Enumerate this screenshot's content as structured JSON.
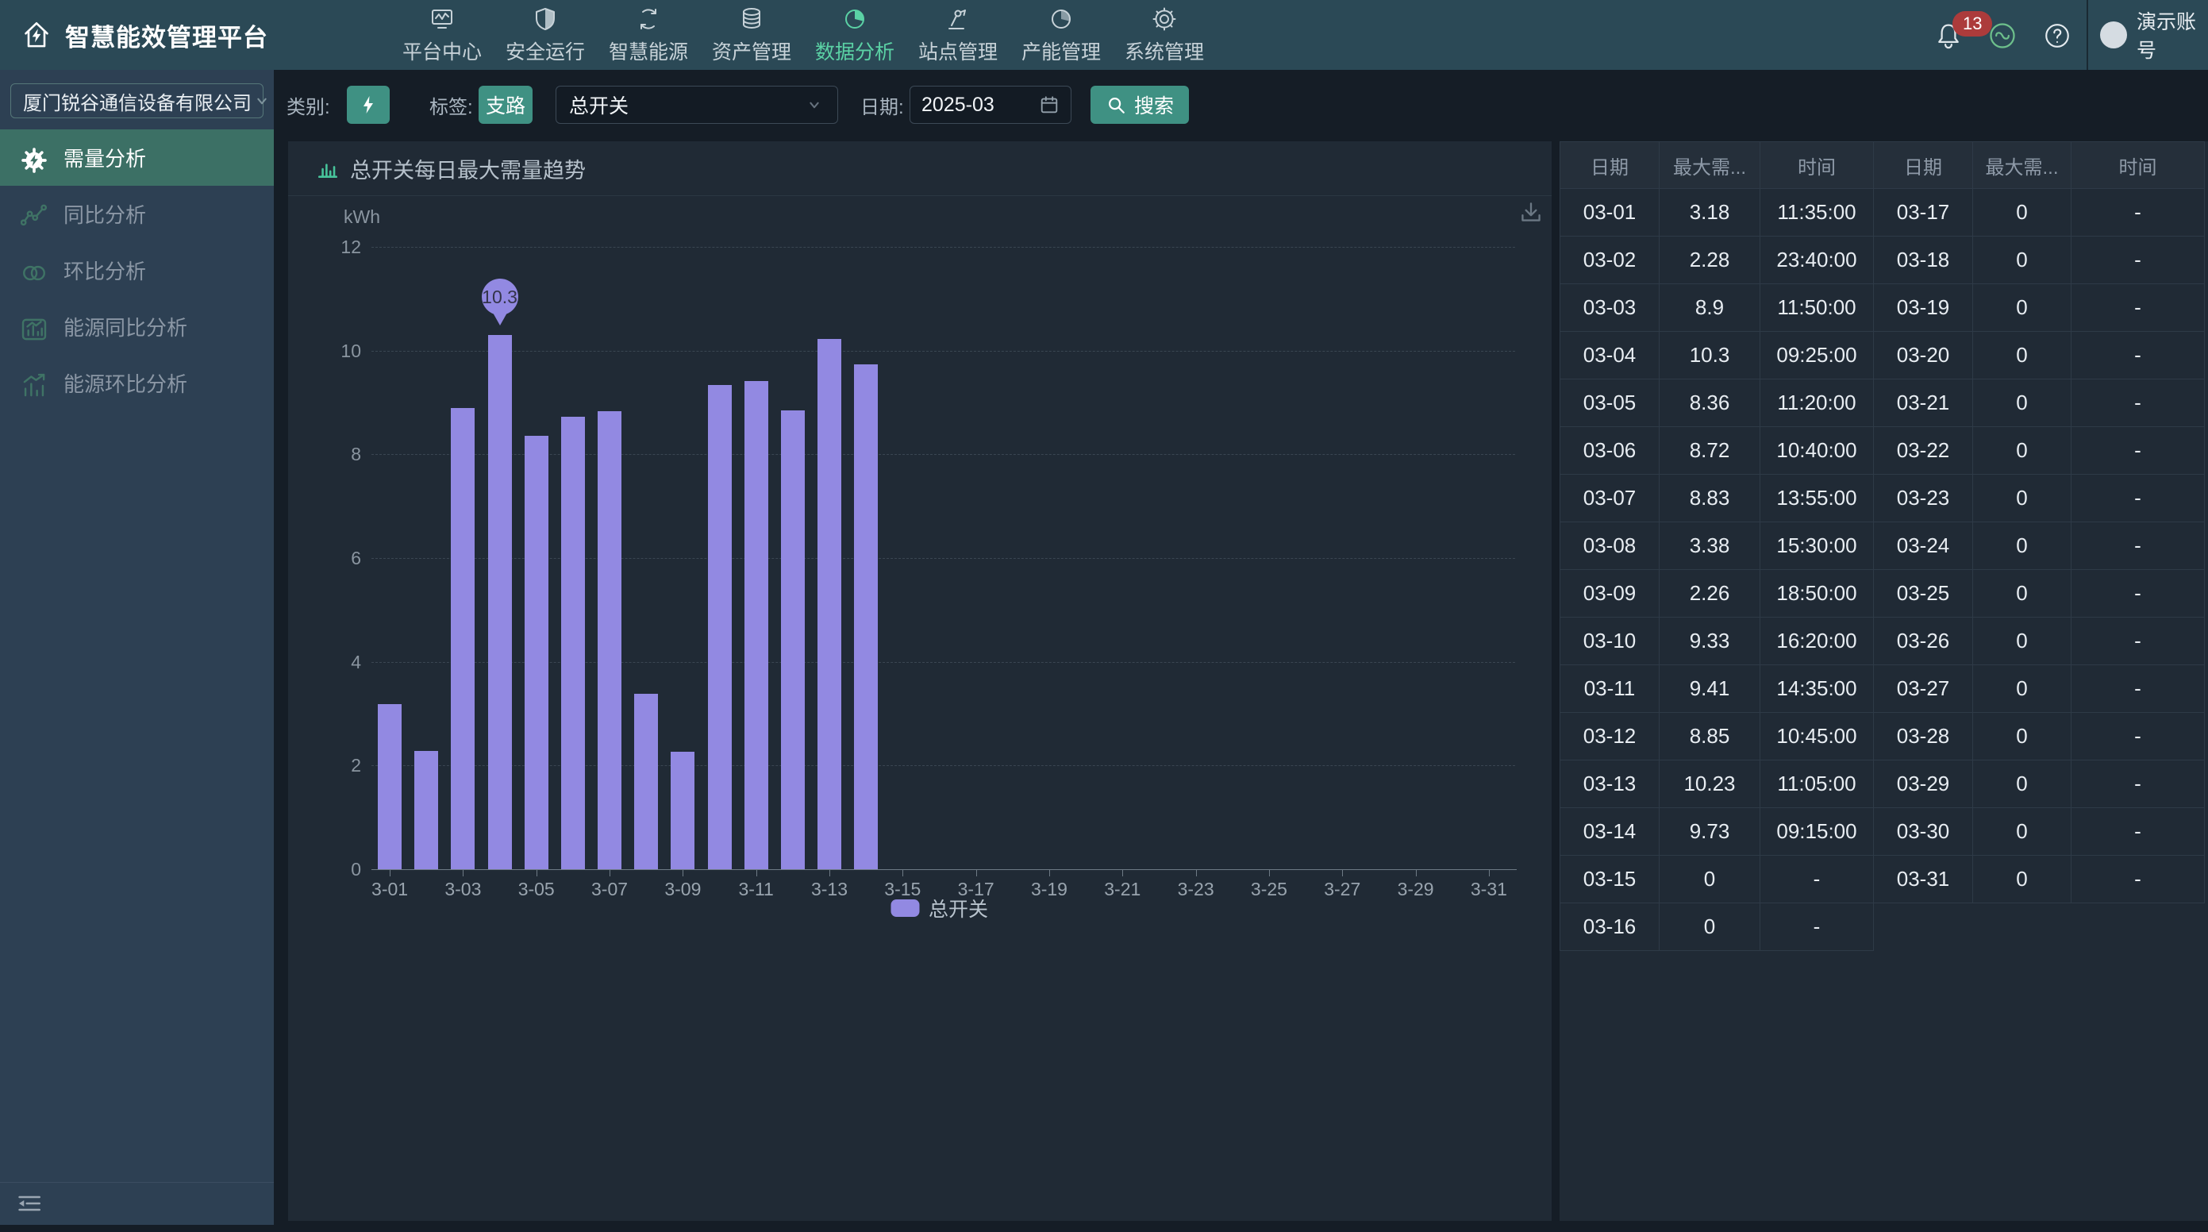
{
  "navbar": {
    "title": "智慧能效管理平台",
    "items": [
      {
        "id": "platform-center",
        "label": "平台中心",
        "icon": "platform-center-icon",
        "active": false
      },
      {
        "id": "safe-operation",
        "label": "安全运行",
        "icon": "safe-operation-icon",
        "active": false
      },
      {
        "id": "smart-energy",
        "label": "智慧能源",
        "icon": "smart-energy-icon",
        "active": false
      },
      {
        "id": "asset-management",
        "label": "资产管理",
        "icon": "asset-management-icon",
        "active": false
      },
      {
        "id": "data-analysis",
        "label": "数据分析",
        "icon": "data-analysis-icon",
        "active": true
      },
      {
        "id": "site-management",
        "label": "站点管理",
        "icon": "site-management-icon",
        "active": false
      },
      {
        "id": "capacity-management",
        "label": "产能管理",
        "icon": "capacity-management-icon",
        "active": false
      },
      {
        "id": "system-management",
        "label": "系统管理",
        "icon": "system-management-icon",
        "active": false
      }
    ],
    "notification_count": "13",
    "username": "演示账号"
  },
  "sidebar": {
    "company": "厦门锐谷通信设备有限公司",
    "items": [
      {
        "id": "demand-analysis",
        "label": "需量分析",
        "icon": "demand-gear-icon",
        "active": true
      },
      {
        "id": "yoy-analysis",
        "label": "同比分析",
        "icon": "yoy-trend-icon",
        "active": false
      },
      {
        "id": "mom-analysis",
        "label": "环比分析",
        "icon": "mom-circles-icon",
        "active": false
      },
      {
        "id": "energy-yoy-analysis",
        "label": "能源同比分析",
        "icon": "energy-yoy-icon",
        "active": false
      },
      {
        "id": "energy-mom-analysis",
        "label": "能源环比分析",
        "icon": "energy-mom-icon",
        "active": false
      }
    ]
  },
  "filters": {
    "category_label": "类别:",
    "category_icon": "lightning-icon",
    "tag_label": "标签:",
    "tag_button": "支路",
    "switch_select": "总开关",
    "date_label": "日期:",
    "date_value": "2025-03",
    "search_button": "搜索"
  },
  "chart_panel": {
    "title": "总开关每日最大需量趋势"
  },
  "chart_data": {
    "type": "bar",
    "title": "总开关每日最大需量趋势",
    "unit": "kWh",
    "ylim": [
      0,
      12
    ],
    "y_ticks": [
      0,
      2,
      4,
      6,
      8,
      10,
      12
    ],
    "grid": "dashed horizontal",
    "legend_position": "bottom",
    "categories": [
      "3-01",
      "3-02",
      "3-03",
      "3-04",
      "3-05",
      "3-06",
      "3-07",
      "3-08",
      "3-09",
      "3-10",
      "3-11",
      "3-12",
      "3-13",
      "3-14",
      "3-15",
      "3-16",
      "3-17",
      "3-18",
      "3-19",
      "3-20",
      "3-21",
      "3-22",
      "3-23",
      "3-24",
      "3-25",
      "3-26",
      "3-27",
      "3-28",
      "3-29",
      "3-30",
      "3-31"
    ],
    "x_tick_labels": [
      "3-01",
      "3-03",
      "3-05",
      "3-07",
      "3-09",
      "3-11",
      "3-13",
      "3-15",
      "3-17",
      "3-19",
      "3-21",
      "3-23",
      "3-25",
      "3-27",
      "3-29",
      "3-31"
    ],
    "series": [
      {
        "name": "总开关",
        "color": "#9289e2",
        "values": [
          3.18,
          2.28,
          8.9,
          10.3,
          8.36,
          8.72,
          8.83,
          3.38,
          2.26,
          9.33,
          9.41,
          8.85,
          10.23,
          9.73,
          0,
          0,
          0,
          0,
          0,
          0,
          0,
          0,
          0,
          0,
          0,
          0,
          0,
          0,
          0,
          0,
          0
        ]
      }
    ],
    "tooltip": {
      "category": "3-04",
      "value": "10.3"
    }
  },
  "table": {
    "headers": [
      "日期",
      "最大需...",
      "时间",
      "日期",
      "最大需...",
      "时间"
    ],
    "rows": [
      [
        "03-01",
        "3.18",
        "11:35:00",
        "03-17",
        "0",
        "-"
      ],
      [
        "03-02",
        "2.28",
        "23:40:00",
        "03-18",
        "0",
        "-"
      ],
      [
        "03-03",
        "8.9",
        "11:50:00",
        "03-19",
        "0",
        "-"
      ],
      [
        "03-04",
        "10.3",
        "09:25:00",
        "03-20",
        "0",
        "-"
      ],
      [
        "03-05",
        "8.36",
        "11:20:00",
        "03-21",
        "0",
        "-"
      ],
      [
        "03-06",
        "8.72",
        "10:40:00",
        "03-22",
        "0",
        "-"
      ],
      [
        "03-07",
        "8.83",
        "13:55:00",
        "03-23",
        "0",
        "-"
      ],
      [
        "03-08",
        "3.38",
        "15:30:00",
        "03-24",
        "0",
        "-"
      ],
      [
        "03-09",
        "2.26",
        "18:50:00",
        "03-25",
        "0",
        "-"
      ],
      [
        "03-10",
        "9.33",
        "16:20:00",
        "03-26",
        "0",
        "-"
      ],
      [
        "03-11",
        "9.41",
        "14:35:00",
        "03-27",
        "0",
        "-"
      ],
      [
        "03-12",
        "8.85",
        "10:45:00",
        "03-28",
        "0",
        "-"
      ],
      [
        "03-13",
        "10.23",
        "11:05:00",
        "03-29",
        "0",
        "-"
      ],
      [
        "03-14",
        "9.73",
        "09:15:00",
        "03-30",
        "0",
        "-"
      ],
      [
        "03-15",
        "0",
        "-",
        "03-31",
        "0",
        "-"
      ],
      [
        "03-16",
        "0",
        "-",
        "",
        "",
        ""
      ]
    ]
  },
  "colors": {
    "navbar_bg": "#2b4956",
    "nav_active": "#5bd2a5",
    "sidebar_bg": "#2d4053",
    "sidebar_active_bg": "#3c7065",
    "panel_bg": "#202a35",
    "page_bg": "#151d26",
    "accent_teal": "#3f9183",
    "bar_purple": "#9289e2",
    "badge_red": "#ac3b3b"
  }
}
